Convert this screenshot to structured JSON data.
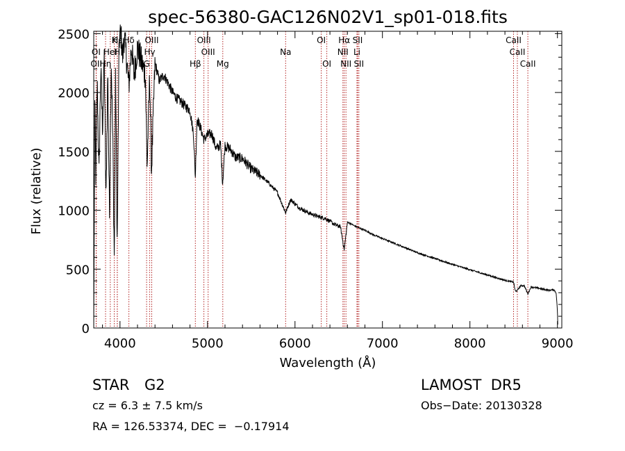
{
  "chart_data": {
    "type": "line",
    "title": "spec-56380-GAC126N02V1_sp01-018.fits",
    "xlabel": "Wavelength (Å)",
    "ylabel": "Flux (relative)",
    "xlim": [
      3700,
      9050
    ],
    "ylim": [
      0,
      2520
    ],
    "xticks": [
      4000,
      5000,
      6000,
      7000,
      8000,
      9000
    ],
    "yticks": [
      0,
      500,
      1000,
      1500,
      2000,
      2500
    ],
    "grid": false,
    "series": [
      {
        "x": [
          3700,
          3712,
          3725,
          3740,
          3760,
          3780,
          3800,
          3820,
          3840,
          3860,
          3880,
          3900,
          3920,
          3935,
          3950,
          3968,
          3990,
          4010,
          4030,
          4050,
          4080,
          4101,
          4130,
          4160,
          4200,
          4250,
          4290,
          4310,
          4340,
          4360,
          4400,
          4450,
          4500,
          4550,
          4600,
          4650,
          4700,
          4750,
          4800,
          4840,
          4861,
          4880,
          4920,
          4960,
          5000,
          5050,
          5100,
          5150,
          5173,
          5200,
          5260,
          5320,
          5400,
          5500,
          5600,
          5700,
          5800,
          5893,
          5950,
          6050,
          6150,
          6250,
          6350,
          6450,
          6520,
          6563,
          6600,
          6700,
          6800,
          6900,
          7000,
          7200,
          7400,
          7600,
          7800,
          8000,
          8200,
          8400,
          8498,
          8520,
          8542,
          8580,
          8620,
          8662,
          8700,
          8800,
          8900,
          8960,
          8985,
          9000,
          9005
        ],
        "y": [
          0,
          1900,
          1250,
          2100,
          1300,
          2200,
          1700,
          2300,
          1050,
          2200,
          950,
          2300,
          1500,
          570,
          2200,
          650,
          2450,
          2500,
          2300,
          2480,
          2250,
          2050,
          2400,
          2150,
          2380,
          2250,
          2150,
          1370,
          2150,
          1330,
          2250,
          2100,
          2150,
          2080,
          2000,
          1950,
          1920,
          1880,
          1850,
          1650,
          1280,
          1780,
          1700,
          1600,
          1640,
          1650,
          1520,
          1560,
          1230,
          1550,
          1520,
          1450,
          1440,
          1350,
          1300,
          1230,
          1150,
          980,
          1090,
          1020,
          980,
          950,
          930,
          880,
          860,
          665,
          900,
          860,
          830,
          790,
          760,
          700,
          640,
          590,
          540,
          495,
          450,
          405,
          390,
          310,
          320,
          360,
          360,
          290,
          350,
          335,
          320,
          325,
          300,
          150,
          0
        ]
      }
    ],
    "line_labels": [
      {
        "label": "Hδ",
        "x": 4102,
        "row": 1
      },
      {
        "label": "K",
        "x": 3934,
        "row": 1
      },
      {
        "label": "Hε",
        "x": 3970,
        "row": 1
      },
      {
        "label": "OIII",
        "x": 4363,
        "row": 1
      },
      {
        "label": "OIII",
        "x": 4959,
        "row": 1
      },
      {
        "label": "OI",
        "x": 6300,
        "row": 1
      },
      {
        "label": "Hα",
        "x": 6563,
        "row": 1
      },
      {
        "label": "SII",
        "x": 6716,
        "row": 1
      },
      {
        "label": "CaII",
        "x": 8498,
        "row": 1
      },
      {
        "label": "OI",
        "x": 3727,
        "row": 2
      },
      {
        "label": "HeI",
        "x": 3889,
        "row": 2
      },
      {
        "label": "H",
        "x": 3968,
        "row": 2
      },
      {
        "label": "Hγ",
        "x": 4340,
        "row": 2
      },
      {
        "label": "OIII",
        "x": 5007,
        "row": 2
      },
      {
        "label": "Na",
        "x": 5893,
        "row": 2
      },
      {
        "label": "NII",
        "x": 6548,
        "row": 2
      },
      {
        "label": "Li",
        "x": 6708,
        "row": 2
      },
      {
        "label": "CaII",
        "x": 8542,
        "row": 2
      },
      {
        "label": "OII",
        "x": 3729,
        "row": 3
      },
      {
        "label": "Hη",
        "x": 3835,
        "row": 3
      },
      {
        "label": "G",
        "x": 4304,
        "row": 3
      },
      {
        "label": "Hβ",
        "x": 4861,
        "row": 3
      },
      {
        "label": "Mg",
        "x": 5175,
        "row": 3
      },
      {
        "label": "OI",
        "x": 6364,
        "row": 3
      },
      {
        "label": "NII",
        "x": 6583,
        "row": 3
      },
      {
        "label": "SII",
        "x": 6731,
        "row": 3
      },
      {
        "label": "CaII",
        "x": 8662,
        "row": 3
      }
    ],
    "line_color": "#b22222",
    "marker_lines": [
      3727,
      3729,
      3835,
      3889,
      3934,
      3968,
      3970,
      4102,
      4304,
      4340,
      4363,
      4861,
      4959,
      5007,
      5175,
      5893,
      6300,
      6364,
      6548,
      6563,
      6583,
      6708,
      6716,
      6731,
      8498,
      8542,
      8662
    ]
  },
  "info": {
    "class_label": "STAR",
    "subclass": "G2",
    "cz": "cz = 6.3 ± 7.5 km/s",
    "radec": "RA = 126.53374, DEC =  −0.17914",
    "survey": "LAMOST  DR5",
    "obs_date": "Obs−Date: 20130328"
  }
}
